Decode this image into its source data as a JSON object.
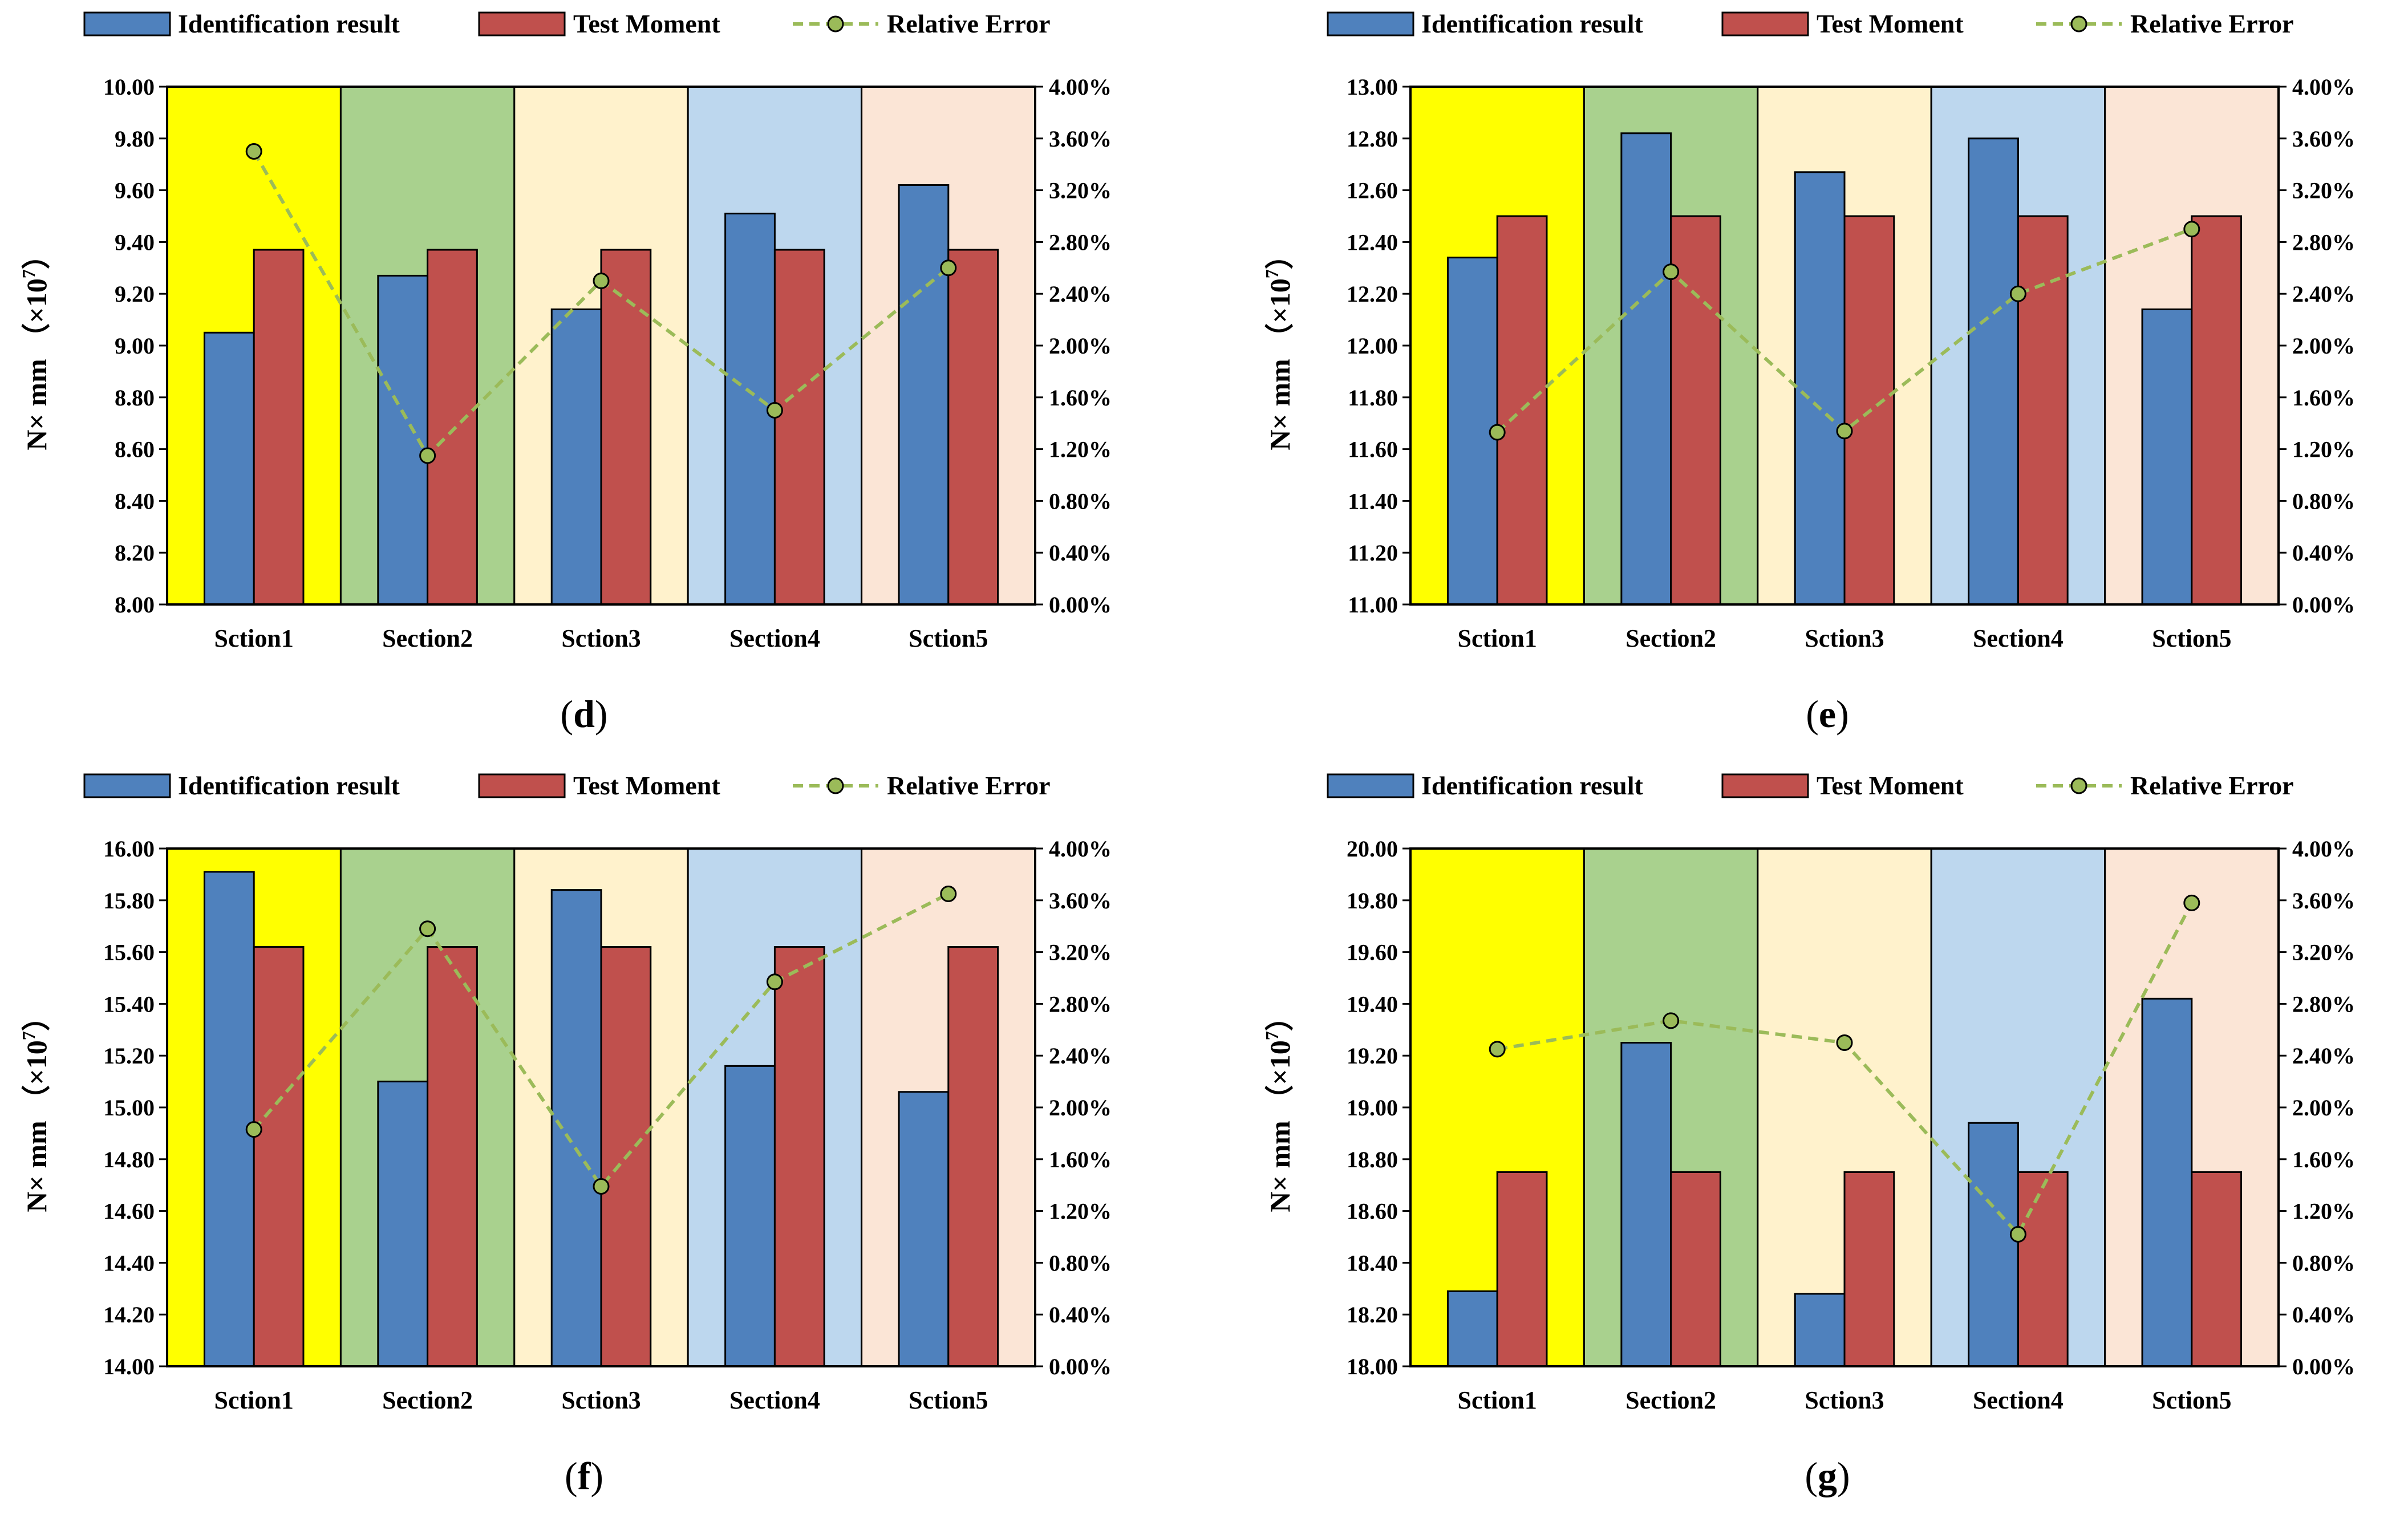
{
  "figure": {
    "legend": {
      "identification": "Identification result",
      "test": "Test Moment",
      "error": "Relative Error"
    },
    "colors": {
      "identification": "#4f81bd",
      "test": "#c0504d",
      "error_line": "#9bbb59",
      "error_marker": "#9bbb59",
      "section_bg": [
        "#ffff00",
        "#a9d18e",
        "#fff2cc",
        "#bdd7ee",
        "#fbe5d6"
      ]
    }
  },
  "chart_data": [
    {
      "type": "bar",
      "caption": "d",
      "categories": [
        "Sction1",
        "Section2",
        "Sction3",
        "Section4",
        "Sction5"
      ],
      "ylabel": "N× mm （×10",
      "ylabel_exp": "7",
      "ylabel_close": "）",
      "ylim": [
        8.0,
        10.0
      ],
      "yticks": [
        "8.00",
        "8.20",
        "8.40",
        "8.60",
        "8.80",
        "9.00",
        "9.20",
        "9.40",
        "9.60",
        "9.80",
        "10.00"
      ],
      "y2lim": [
        0,
        4.0
      ],
      "y2ticks": [
        "0.00%",
        "0.40%",
        "0.80%",
        "1.20%",
        "1.60%",
        "2.00%",
        "2.40%",
        "2.80%",
        "3.20%",
        "3.60%",
        "4.00%"
      ],
      "series": [
        {
          "name": "Identification result",
          "values": [
            9.05,
            9.27,
            9.14,
            9.51,
            9.62
          ]
        },
        {
          "name": "Test Moment",
          "values": [
            9.37,
            9.37,
            9.37,
            9.37,
            9.37
          ]
        },
        {
          "name": "Relative Error",
          "axis": "right",
          "values": [
            3.5,
            1.15,
            2.5,
            1.5,
            2.6
          ]
        }
      ]
    },
    {
      "type": "bar",
      "caption": "e",
      "categories": [
        "Sction1",
        "Section2",
        "Sction3",
        "Section4",
        "Sction5"
      ],
      "ylabel": "N× mm （×10",
      "ylabel_exp": "7",
      "ylabel_close": "）",
      "ylim": [
        11.0,
        13.0
      ],
      "yticks": [
        "11.00",
        "11.20",
        "11.40",
        "11.60",
        "11.80",
        "12.00",
        "12.20",
        "12.40",
        "12.60",
        "12.80",
        "13.00"
      ],
      "y2lim": [
        0,
        4.0
      ],
      "y2ticks": [
        "0.00%",
        "0.40%",
        "0.80%",
        "1.20%",
        "1.60%",
        "2.00%",
        "2.40%",
        "2.80%",
        "3.20%",
        "3.60%",
        "4.00%"
      ],
      "series": [
        {
          "name": "Identification result",
          "values": [
            12.34,
            12.82,
            12.67,
            12.8,
            12.14
          ]
        },
        {
          "name": "Test Moment",
          "values": [
            12.5,
            12.5,
            12.5,
            12.5,
            12.5
          ]
        },
        {
          "name": "Relative Error",
          "axis": "right",
          "values": [
            1.33,
            2.57,
            1.34,
            2.4,
            2.9
          ]
        }
      ]
    },
    {
      "type": "bar",
      "caption": "f",
      "categories": [
        "Sction1",
        "Section2",
        "Sction3",
        "Section4",
        "Sction5"
      ],
      "ylabel": "N× mm （×10",
      "ylabel_exp": "7",
      "ylabel_close": "）",
      "ylim": [
        14.0,
        16.0
      ],
      "yticks": [
        "14.00",
        "14.20",
        "14.40",
        "14.60",
        "14.80",
        "15.00",
        "15.20",
        "15.40",
        "15.60",
        "15.80",
        "16.00"
      ],
      "y2lim": [
        0,
        4.0
      ],
      "y2ticks": [
        "0.00%",
        "0.40%",
        "0.80%",
        "1.20%",
        "1.60%",
        "2.00%",
        "2.40%",
        "2.80%",
        "3.20%",
        "3.60%",
        "4.00%"
      ],
      "series": [
        {
          "name": "Identification result",
          "values": [
            15.91,
            15.1,
            15.84,
            15.16,
            15.06
          ]
        },
        {
          "name": "Test Moment",
          "values": [
            15.62,
            15.62,
            15.62,
            15.62,
            15.62
          ]
        },
        {
          "name": "Relative Error",
          "axis": "right",
          "values": [
            1.83,
            3.38,
            1.39,
            2.97,
            3.65
          ]
        }
      ]
    },
    {
      "type": "bar",
      "caption": "g",
      "categories": [
        "Sction1",
        "Section2",
        "Sction3",
        "Section4",
        "Sction5"
      ],
      "ylabel": "N× mm （×10",
      "ylabel_exp": "7",
      "ylabel_close": "）",
      "ylim": [
        18.0,
        20.0
      ],
      "yticks": [
        "18.00",
        "18.20",
        "18.40",
        "18.60",
        "18.80",
        "19.00",
        "19.20",
        "19.40",
        "19.60",
        "19.80",
        "20.00"
      ],
      "y2lim": [
        0,
        4.0
      ],
      "y2ticks": [
        "0.00%",
        "0.40%",
        "0.80%",
        "1.20%",
        "1.60%",
        "2.00%",
        "2.40%",
        "2.80%",
        "3.20%",
        "3.60%",
        "4.00%"
      ],
      "series": [
        {
          "name": "Identification result",
          "values": [
            18.29,
            19.25,
            18.28,
            18.94,
            19.42
          ]
        },
        {
          "name": "Test Moment",
          "values": [
            18.75,
            18.75,
            18.75,
            18.75,
            18.75
          ]
        },
        {
          "name": "Relative Error",
          "axis": "right",
          "values": [
            2.45,
            2.67,
            2.5,
            1.02,
            3.58
          ]
        }
      ]
    }
  ]
}
